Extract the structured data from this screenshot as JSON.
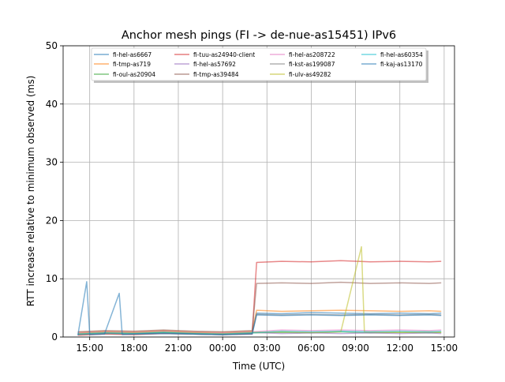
{
  "chart_data": {
    "type": "line",
    "title": "Anchor mesh pings (FI -> de-nue-as15451) IPv6",
    "xlabel": "Time (UTC)",
    "ylabel": "RTT increase relative to minimum observed (ms)",
    "ylim": [
      0,
      50
    ],
    "xlim": [
      13.2,
      39.7
    ],
    "x_ticks": [
      {
        "value": 15,
        "label": "15:00"
      },
      {
        "value": 18,
        "label": "18:00"
      },
      {
        "value": 21,
        "label": "21:00"
      },
      {
        "value": 24,
        "label": "00:00"
      },
      {
        "value": 27,
        "label": "03:00"
      },
      {
        "value": 30,
        "label": "06:00"
      },
      {
        "value": 33,
        "label": "09:00"
      },
      {
        "value": 36,
        "label": "12:00"
      },
      {
        "value": 39,
        "label": "15:00"
      }
    ],
    "y_ticks": [
      0,
      10,
      20,
      30,
      40,
      50
    ],
    "grid": true,
    "legend_position": "top-center",
    "series": [
      {
        "name": "fi-hel-as6667",
        "color": "#1f77b4",
        "points": [
          [
            14.2,
            0.4
          ],
          [
            16,
            0.6
          ],
          [
            18,
            0.5
          ],
          [
            20,
            0.7
          ],
          [
            22,
            0.5
          ],
          [
            24,
            0.4
          ],
          [
            26,
            0.6
          ],
          [
            26.3,
            4.1
          ],
          [
            28,
            4.0
          ],
          [
            30,
            4.2
          ],
          [
            32,
            4.1
          ],
          [
            34,
            4.0
          ],
          [
            36,
            4.1
          ],
          [
            38,
            4.0
          ],
          [
            38.8,
            4.1
          ]
        ]
      },
      {
        "name": "fi-tmp-as719",
        "color": "#ff7f0e",
        "points": [
          [
            14.2,
            0.8
          ],
          [
            16,
            1.0
          ],
          [
            18,
            0.9
          ],
          [
            20,
            1.1
          ],
          [
            22,
            0.9
          ],
          [
            24,
            0.8
          ],
          [
            26,
            1.0
          ],
          [
            26.3,
            4.6
          ],
          [
            28,
            4.4
          ],
          [
            30,
            4.5
          ],
          [
            32,
            4.6
          ],
          [
            34,
            4.5
          ],
          [
            36,
            4.4
          ],
          [
            38,
            4.5
          ],
          [
            38.8,
            4.4
          ]
        ]
      },
      {
        "name": "fi-oul-as20904",
        "color": "#2ca02c",
        "points": [
          [
            14.2,
            0.5
          ],
          [
            16,
            0.7
          ],
          [
            18,
            0.6
          ],
          [
            20,
            0.8
          ],
          [
            22,
            0.6
          ],
          [
            24,
            0.5
          ],
          [
            26,
            0.7
          ],
          [
            28,
            0.8
          ],
          [
            30,
            0.7
          ],
          [
            32,
            0.9
          ],
          [
            34,
            0.7
          ],
          [
            36,
            0.8
          ],
          [
            38,
            0.7
          ],
          [
            38.8,
            0.8
          ]
        ]
      },
      {
        "name": "fi-tuu-as24940-client",
        "color": "#d62728",
        "points": [
          [
            14.2,
            0.3
          ],
          [
            16,
            0.5
          ],
          [
            18,
            0.4
          ],
          [
            20,
            0.6
          ],
          [
            22,
            0.5
          ],
          [
            24,
            0.4
          ],
          [
            26,
            0.5
          ],
          [
            26.3,
            12.8
          ],
          [
            28,
            13.0
          ],
          [
            30,
            12.9
          ],
          [
            32,
            13.1
          ],
          [
            34,
            12.9
          ],
          [
            36,
            13.0
          ],
          [
            38,
            12.9
          ],
          [
            38.8,
            13.0
          ]
        ]
      },
      {
        "name": "fi-hel-as57692",
        "color": "#9467bd",
        "points": [
          [
            14.2,
            0.6
          ],
          [
            16,
            0.8
          ],
          [
            18,
            0.7
          ],
          [
            20,
            0.9
          ],
          [
            22,
            0.7
          ],
          [
            24,
            0.6
          ],
          [
            26,
            0.8
          ],
          [
            28,
            0.6
          ],
          [
            30,
            0.7
          ],
          [
            32,
            0.6
          ],
          [
            34,
            0.7
          ],
          [
            36,
            0.6
          ],
          [
            38,
            0.7
          ],
          [
            38.8,
            0.6
          ]
        ]
      },
      {
        "name": "fi-tmp-as39484",
        "color": "#8c564b",
        "points": [
          [
            14.2,
            0.9
          ],
          [
            16,
            1.1
          ],
          [
            18,
            1.0
          ],
          [
            20,
            1.2
          ],
          [
            22,
            1.0
          ],
          [
            24,
            0.9
          ],
          [
            26,
            1.1
          ],
          [
            26.3,
            9.2
          ],
          [
            28,
            9.3
          ],
          [
            30,
            9.2
          ],
          [
            32,
            9.4
          ],
          [
            34,
            9.2
          ],
          [
            36,
            9.3
          ],
          [
            38,
            9.2
          ],
          [
            38.8,
            9.3
          ]
        ]
      },
      {
        "name": "fi-hel-as208722",
        "color": "#e377c2",
        "points": [
          [
            14.2,
            0.7
          ],
          [
            16,
            0.9
          ],
          [
            18,
            0.8
          ],
          [
            20,
            1.0
          ],
          [
            22,
            0.8
          ],
          [
            24,
            0.7
          ],
          [
            26,
            0.9
          ],
          [
            28,
            1.2
          ],
          [
            30,
            1.1
          ],
          [
            32,
            1.2
          ],
          [
            34,
            1.1
          ],
          [
            36,
            1.2
          ],
          [
            38,
            1.1
          ],
          [
            38.8,
            1.2
          ]
        ]
      },
      {
        "name": "fi-kst-as199087",
        "color": "#7f7f7f",
        "points": [
          [
            14.2,
            0.4
          ],
          [
            16,
            0.6
          ],
          [
            18,
            0.5
          ],
          [
            20,
            0.6
          ],
          [
            22,
            0.5
          ],
          [
            24,
            0.4
          ],
          [
            26,
            0.6
          ],
          [
            26.3,
            3.9
          ],
          [
            28,
            3.8
          ],
          [
            30,
            3.9
          ],
          [
            32,
            3.8
          ],
          [
            34,
            3.9
          ],
          [
            36,
            3.8
          ],
          [
            38,
            3.9
          ],
          [
            38.8,
            3.8
          ]
        ]
      },
      {
        "name": "fi-ulv-as49282",
        "color": "#bcbd22",
        "points": [
          [
            14.2,
            0.6
          ],
          [
            16,
            0.8
          ],
          [
            18,
            0.7
          ],
          [
            20,
            0.9
          ],
          [
            22,
            0.7
          ],
          [
            24,
            0.6
          ],
          [
            26,
            0.8
          ],
          [
            28,
            0.9
          ],
          [
            30,
            0.8
          ],
          [
            32,
            0.9
          ],
          [
            33.4,
            15.5
          ],
          [
            33.6,
            0.9
          ],
          [
            36,
            0.8
          ],
          [
            38,
            0.9
          ],
          [
            38.8,
            0.8
          ]
        ]
      },
      {
        "name": "fi-hel-as60354",
        "color": "#17becf",
        "points": [
          [
            14.2,
            0.5
          ],
          [
            16,
            0.7
          ],
          [
            18,
            0.6
          ],
          [
            20,
            0.8
          ],
          [
            22,
            0.6
          ],
          [
            24,
            0.5
          ],
          [
            26,
            0.7
          ],
          [
            28,
            1.0
          ],
          [
            30,
            0.9
          ],
          [
            32,
            1.0
          ],
          [
            34,
            0.9
          ],
          [
            36,
            1.0
          ],
          [
            38,
            0.9
          ],
          [
            38.8,
            1.0
          ]
        ]
      },
      {
        "name": "fi-kaj-as13170",
        "color": "#1f77b4",
        "points": [
          [
            14.2,
            0.3
          ],
          [
            14.8,
            9.5
          ],
          [
            15,
            0.4
          ],
          [
            16,
            0.5
          ],
          [
            17,
            7.5
          ],
          [
            17.2,
            0.4
          ],
          [
            18,
            0.5
          ],
          [
            20,
            0.6
          ],
          [
            22,
            0.5
          ],
          [
            24,
            0.4
          ],
          [
            26,
            0.5
          ],
          [
            26.3,
            3.8
          ],
          [
            28,
            3.7
          ],
          [
            30,
            3.8
          ],
          [
            32,
            3.7
          ],
          [
            34,
            3.8
          ],
          [
            36,
            3.7
          ],
          [
            38,
            3.8
          ],
          [
            38.8,
            3.7
          ]
        ]
      }
    ]
  }
}
